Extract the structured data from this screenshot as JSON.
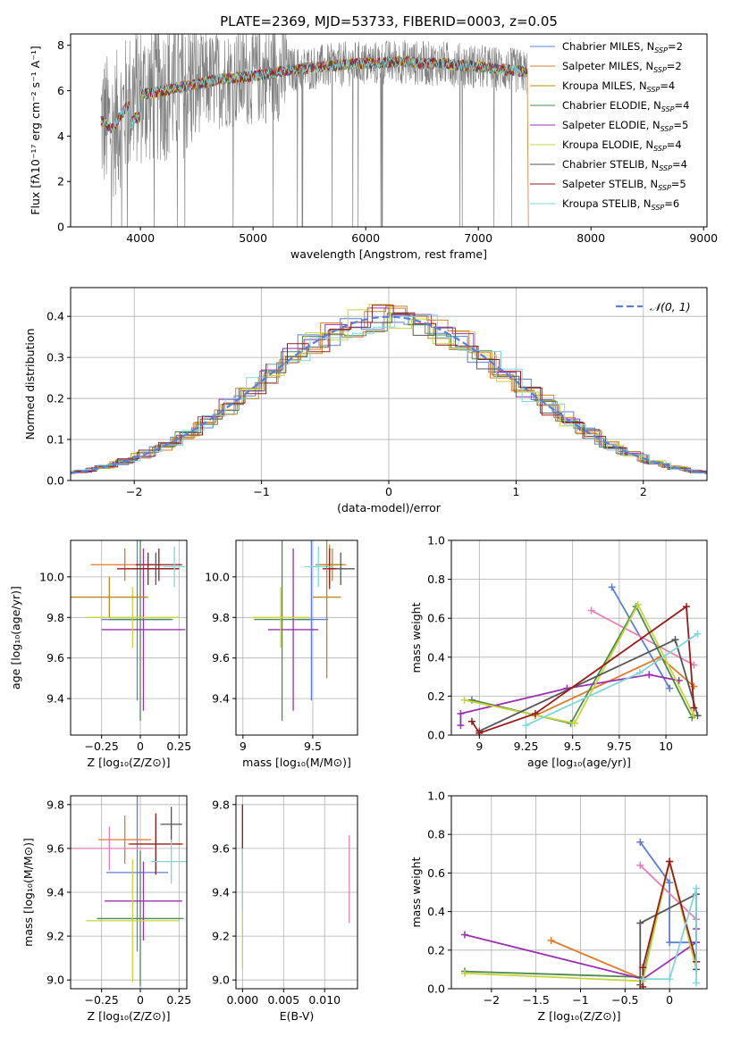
{
  "figure_title": "PLATE=2369, MJD=53733, FIBERID=0003, z=0.05",
  "colors": [
    "#5b7fd6",
    "#e07a2c",
    "#b88a1e",
    "#4d8a4d",
    "#9b30b0",
    "#c8d43a",
    "#555555",
    "#9a1a1a",
    "#7fd6dc"
  ],
  "spectrum_color": "#808080",
  "chart_data": [
    {
      "id": "spectrum",
      "type": "line",
      "title": "PLATE=2369, MJD=53733, FIBERID=0003, z=0.05",
      "xlabel": "wavelength [Angstrom, rest frame]",
      "ylabel": "Flux [fλ10⁻¹⁷ erg cm⁻² s⁻¹ A⁻¹]",
      "xlim": [
        3380,
        9030
      ],
      "ylim": [
        0,
        8.5
      ],
      "xticks": [
        4000,
        5000,
        6000,
        7000,
        8000,
        9000
      ],
      "yticks": [
        0,
        2,
        4,
        6,
        8
      ],
      "grid": false,
      "legend_loc": "upper right",
      "continuum": [
        [
          3650,
          4.7
        ],
        [
          3750,
          4.3
        ],
        [
          3850,
          5.1
        ],
        [
          3950,
          5.8
        ],
        [
          4100,
          5.9
        ],
        [
          4300,
          6.1
        ],
        [
          4500,
          6.3
        ],
        [
          4700,
          6.5
        ],
        [
          4900,
          6.6
        ],
        [
          5100,
          6.7
        ],
        [
          5300,
          6.9
        ],
        [
          5500,
          7.0
        ],
        [
          5700,
          7.1
        ],
        [
          5900,
          7.2
        ],
        [
          6100,
          7.2
        ],
        [
          6300,
          7.3
        ],
        [
          6500,
          7.2
        ],
        [
          6700,
          7.2
        ],
        [
          6900,
          7.1
        ],
        [
          7100,
          7.0
        ],
        [
          7300,
          6.9
        ],
        [
          7440,
          6.8
        ]
      ],
      "series": [
        {
          "name": "Chabrier MILES, N",
          "nssp": "=2"
        },
        {
          "name": "Salpeter MILES, N",
          "nssp": "=2"
        },
        {
          "name": "Kroupa MILES, N",
          "nssp": "=4"
        },
        {
          "name": "Chabrier ELODIE, N",
          "nssp": "=4"
        },
        {
          "name": "Salpeter ELODIE, N",
          "nssp": "=5"
        },
        {
          "name": "Kroupa ELODIE, N",
          "nssp": "=4"
        },
        {
          "name": "Chabrier STELIB, N",
          "nssp": "=4"
        },
        {
          "name": "Salpeter STELIB, N",
          "nssp": "=5"
        },
        {
          "name": "Kroupa STELIB, N",
          "nssp": "=6"
        }
      ],
      "legend_subscript": "SSP"
    },
    {
      "id": "residuals",
      "type": "histogram",
      "xlabel": "(data-model)/error",
      "ylabel": "Normed distribution",
      "xlim": [
        -2.5,
        2.5
      ],
      "ylim": [
        0,
        0.47
      ],
      "xticks": [
        -2,
        -1,
        0,
        1,
        2
      ],
      "yticks": [
        0.0,
        0.1,
        0.2,
        0.3,
        0.4
      ],
      "grid": true,
      "legend_loc": "upper right",
      "legend_label": "𝒩(0, 1)",
      "bins": 30,
      "reference_curve": "normal(0,1)"
    },
    {
      "id": "age-vs-Z",
      "type": "errorbar",
      "xlabel": "Z [log₁₀(Z/Z⊙)]",
      "ylabel": "age  [log₁₀(age/yr)]",
      "xlim": [
        -0.45,
        0.3
      ],
      "ylim": [
        9.22,
        10.18
      ],
      "xticks": [
        -0.25,
        0.0,
        0.25
      ],
      "yticks": [
        9.4,
        9.6,
        9.8,
        10.0
      ],
      "grid": true,
      "points": [
        {
          "x": -0.02,
          "y": 9.79,
          "xerr": 0.23,
          "yerr": 0.4
        },
        {
          "x": -0.1,
          "y": 10.06,
          "xerr": 0.22,
          "yerr": 0.08
        },
        {
          "x": 0.12,
          "y": 10.06,
          "xerr": 0.15,
          "yerr": 0.08
        },
        {
          "x": 0.0,
          "y": 9.79,
          "xerr": 0.2,
          "yerr": 0.5
        },
        {
          "x": 0.02,
          "y": 9.74,
          "xerr": 0.27,
          "yerr": 0.4
        },
        {
          "x": -0.05,
          "y": 9.8,
          "xerr": 0.3,
          "yerr": 0.15
        },
        {
          "x": 0.1,
          "y": 10.04,
          "xerr": 0.15,
          "yerr": 0.08
        },
        {
          "x": 0.05,
          "y": 10.04,
          "xerr": 0.2,
          "yerr": 0.08
        },
        {
          "x": 0.22,
          "y": 10.05,
          "xerr": 0.07,
          "yerr": 0.1
        },
        {
          "x": -0.2,
          "y": 9.9,
          "xerr": 0.25,
          "yerr": 0.1
        }
      ],
      "point_colors": [
        0,
        1,
        7,
        3,
        4,
        5,
        6,
        7,
        8,
        2
      ]
    },
    {
      "id": "age-vs-mass",
      "type": "errorbar",
      "xlabel": "mass [log₁₀(M/M⊙)]",
      "ylabel": "",
      "xlim": [
        8.95,
        9.82
      ],
      "ylim": [
        9.22,
        10.18
      ],
      "xticks": [
        9.0,
        9.5
      ],
      "yticks": [
        9.4,
        9.6,
        9.8,
        10.0
      ],
      "grid": true,
      "points": [
        {
          "x": 9.49,
          "y": 9.79,
          "xerr": 0.12,
          "yerr": 0.4
        },
        {
          "x": 9.64,
          "y": 10.06,
          "xerr": 0.1,
          "yerr": 0.08
        },
        {
          "x": 9.62,
          "y": 10.06,
          "xerr": 0.1,
          "yerr": 0.1
        },
        {
          "x": 9.28,
          "y": 9.79,
          "xerr": 0.2,
          "yerr": 0.5
        },
        {
          "x": 9.36,
          "y": 9.74,
          "xerr": 0.18,
          "yerr": 0.4
        },
        {
          "x": 9.27,
          "y": 9.8,
          "xerr": 0.2,
          "yerr": 0.15
        },
        {
          "x": 9.7,
          "y": 10.04,
          "xerr": 0.1,
          "yerr": 0.08
        },
        {
          "x": 9.62,
          "y": 10.04,
          "xerr": 0.05,
          "yerr": 0.1
        },
        {
          "x": 9.54,
          "y": 10.05,
          "xerr": 0.1,
          "yerr": 0.1
        },
        {
          "x": 9.6,
          "y": 9.9,
          "xerr": 0.1,
          "yerr": 0.4
        }
      ],
      "point_colors": [
        0,
        1,
        2,
        3,
        4,
        5,
        6,
        7,
        8,
        2
      ]
    },
    {
      "id": "mass-weight-vs-age",
      "type": "line",
      "xlabel": "age  [log₁₀(age/yr)]",
      "ylabel": "mass weight",
      "xlim": [
        8.85,
        10.22
      ],
      "ylim": [
        0,
        1.0
      ],
      "xticks": [
        9.0,
        9.25,
        9.5,
        9.75,
        10.0
      ],
      "yticks": [
        0.0,
        0.2,
        0.4,
        0.6,
        0.8,
        1.0
      ],
      "grid": true,
      "series": [
        {
          "x": [
            9.71,
            10.02
          ],
          "y": [
            0.76,
            0.24
          ],
          "color": 0
        },
        {
          "x": [
            9.3,
            9.97,
            10.15
          ],
          "y": [
            0.1,
            0.4,
            0.25
          ],
          "color": 1
        },
        {
          "x": [
            9.6,
            10.15
          ],
          "y": [
            0.64,
            0.36
          ],
          "color": 9
        },
        {
          "x": [
            8.96,
            9.49,
            9.84,
            10.14
          ],
          "y": [
            0.18,
            0.06,
            0.66,
            0.09
          ],
          "color": 3
        },
        {
          "x": [
            8.9,
            8.9,
            9.47,
            9.91,
            10.07
          ],
          "y": [
            0.05,
            0.11,
            0.24,
            0.31,
            0.28
          ],
          "color": 4
        },
        {
          "x": [
            8.92,
            9.51,
            9.85,
            10.15
          ],
          "y": [
            0.18,
            0.06,
            0.67,
            0.1
          ],
          "color": 5
        },
        {
          "x": [
            9.0,
            10.05,
            10.17
          ],
          "y": [
            0.02,
            0.49,
            0.1
          ],
          "color": 6
        },
        {
          "x": [
            8.96,
            9.0,
            9.3,
            10.11,
            10.15
          ],
          "y": [
            0.07,
            0.01,
            0.11,
            0.66,
            0.14
          ],
          "color": 7
        },
        {
          "x": [
            9.25,
            9.86,
            10.17
          ],
          "y": [
            0.05,
            0.32,
            0.52
          ],
          "color": 8
        }
      ],
      "extra_colors": [
        "#e87eb6"
      ]
    },
    {
      "id": "mass-vs-Z",
      "type": "errorbar",
      "xlabel": "Z [log₁₀(Z/Z⊙)]",
      "ylabel": "mass [log₁₀(M/M⊙)]",
      "xlim": [
        -0.45,
        0.3
      ],
      "ylim": [
        8.96,
        9.84
      ],
      "xticks": [
        -0.25,
        0.0,
        0.25
      ],
      "yticks": [
        9.0,
        9.2,
        9.4,
        9.6,
        9.8
      ],
      "grid": true,
      "points": [
        {
          "x": -0.02,
          "y": 9.49,
          "xerr": 0.2,
          "yerr": 0.36
        },
        {
          "x": -0.1,
          "y": 9.64,
          "xerr": 0.17,
          "yerr": 0.11
        },
        {
          "x": 0.1,
          "y": 9.62,
          "xerr": 0.18,
          "yerr": 0.12
        },
        {
          "x": 0.0,
          "y": 9.28,
          "xerr": 0.28,
          "yerr": 0.31
        },
        {
          "x": 0.02,
          "y": 9.36,
          "xerr": 0.25,
          "yerr": 0.18
        },
        {
          "x": -0.05,
          "y": 9.27,
          "xerr": 0.3,
          "yerr": 0.28
        },
        {
          "x": 0.2,
          "y": 9.71,
          "xerr": 0.07,
          "yerr": 0.08
        },
        {
          "x": 0.1,
          "y": 9.62,
          "xerr": 0.17,
          "yerr": 0.14
        },
        {
          "x": 0.2,
          "y": 9.54,
          "xerr": 0.13,
          "yerr": 0.1
        },
        {
          "x": -0.2,
          "y": 9.6,
          "xerr": 0.28,
          "yerr": 0.1
        }
      ],
      "point_colors": [
        0,
        1,
        2,
        3,
        4,
        5,
        6,
        7,
        8,
        9
      ]
    },
    {
      "id": "mass-vs-ebv",
      "type": "errorbar",
      "xlabel": "E(B-V)",
      "ylabel": "",
      "xlim": [
        -0.0008,
        0.014
      ],
      "ylim": [
        8.96,
        9.84
      ],
      "xticks": [
        0.0,
        0.005,
        0.01
      ],
      "xtick_labels": [
        "0.000",
        "0.005",
        "0.010"
      ],
      "yticks": [
        9.0,
        9.2,
        9.4,
        9.6,
        9.8
      ],
      "grid": true,
      "points": [
        {
          "x": 0.0,
          "y": 9.6,
          "yerr": 0.2,
          "color": 6
        },
        {
          "x": 0.0,
          "y": 9.3,
          "yerr": 0.25,
          "color": 5
        },
        {
          "x": 0.0,
          "y": 9.5,
          "yerr": 0.18,
          "color": 8
        },
        {
          "x": 0.0,
          "y": 9.7,
          "yerr": 0.1,
          "color": 7
        },
        {
          "x": 0.013,
          "y": 9.46,
          "yerr": 0.2,
          "color": 9
        }
      ]
    },
    {
      "id": "mass-weight-vs-Z",
      "type": "line",
      "xlabel": "Z [log₁₀(Z/Z⊙)]",
      "ylabel": "mass weight",
      "xlim": [
        -2.45,
        0.42
      ],
      "ylim": [
        0,
        1.0
      ],
      "xticks": [
        -2.0,
        -1.5,
        -1.0,
        -0.5,
        0.0
      ],
      "yticks": [
        0.0,
        0.2,
        0.4,
        0.6,
        0.8,
        1.0
      ],
      "grid": true,
      "series": [
        {
          "x": [
            -0.33,
            0.0,
            0.0,
            0.3
          ],
          "y": [
            0.76,
            0.55,
            0.24,
            0.24
          ],
          "color": 0
        },
        {
          "x": [
            -1.33,
            -0.3,
            0.0
          ],
          "y": [
            0.25,
            0.05,
            0.66
          ],
          "color": 1
        },
        {
          "x": [
            -0.33,
            0.3
          ],
          "y": [
            0.64,
            0.36
          ],
          "color": 9
        },
        {
          "x": [
            -2.3,
            -0.3,
            0.0
          ],
          "y": [
            0.09,
            0.06,
            0.66
          ],
          "color": 3
        },
        {
          "x": [
            -2.3,
            -0.3,
            0.3,
            0.3
          ],
          "y": [
            0.28,
            0.05,
            0.24,
            0.31
          ],
          "color": 4
        },
        {
          "x": [
            -2.3,
            -0.3,
            0.0,
            0.3
          ],
          "y": [
            0.08,
            0.04,
            0.66,
            0.1
          ],
          "color": 5
        },
        {
          "x": [
            -0.33,
            -0.33,
            0.3,
            0.3
          ],
          "y": [
            0.02,
            0.34,
            0.49,
            0.1
          ],
          "color": 6
        },
        {
          "x": [
            -0.3,
            -0.3,
            0.0,
            0.3
          ],
          "y": [
            0.01,
            0.11,
            0.66,
            0.14
          ],
          "color": 7
        },
        {
          "x": [
            -0.3,
            0.0,
            0.3,
            0.3
          ],
          "y": [
            0.05,
            0.05,
            0.52,
            0.03
          ],
          "color": 8
        }
      ]
    }
  ]
}
